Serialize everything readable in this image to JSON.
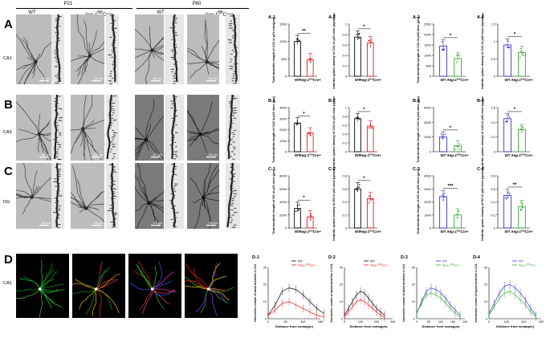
{
  "header": {
    "p21": "P21",
    "p60": "P60",
    "wt": "WT",
    "mutant": "Aeg-1fl/flCre+",
    "mutant_italic": "Aeg-1",
    "mutant_sup": "fl/fl",
    "mutant_suffix": "Cre+"
  },
  "rows": [
    {
      "letter": "A",
      "region": "CA1"
    },
    {
      "letter": "B",
      "region": "CA3"
    },
    {
      "letter": "C",
      "region": "DG"
    },
    {
      "letter": "D",
      "region": "CA1"
    }
  ],
  "scale_labels": [
    "100 μm",
    "100 μm",
    "100 μm",
    "100 μm"
  ],
  "chart_data": [
    {
      "type": "bar",
      "panel": "A-1",
      "ylabel": "Total dendritic length of CA1 in p21 mice(μm)",
      "categories": [
        "WT",
        "Aeg-1fl/flCre+"
      ],
      "values": [
        1000,
        480
      ],
      "yticks": [
        0,
        500,
        1000,
        1500
      ],
      "ylim": [
        0,
        1500
      ],
      "sig": "**",
      "colors": [
        "#000000",
        "#e41a1c"
      ]
    },
    {
      "type": "bar",
      "panel": "A-2",
      "ylabel": "Dendritic spines density of CA1 in p21 mice (spines/μm)",
      "categories": [
        "WT",
        "Aeg-1fl/flCre+"
      ],
      "values": [
        0.75,
        0.64
      ],
      "yticks": [
        0.0,
        0.2,
        0.4,
        0.6,
        0.8,
        1.0
      ],
      "ylim": [
        0,
        1.0
      ],
      "sig": "*",
      "colors": [
        "#000000",
        "#e41a1c"
      ]
    },
    {
      "type": "bar",
      "panel": "A-3",
      "ylabel": "Total dendritic length of CA1 in p60 mice (μm)",
      "categories": [
        "WT",
        "Aeg-1fl/flCre+"
      ],
      "values": [
        1450,
        850
      ],
      "yticks": [
        0,
        500,
        1000,
        1500,
        2000,
        2500
      ],
      "ylim": [
        0,
        2500
      ],
      "sig": "*",
      "colors": [
        "#3333cc",
        "#33aa33"
      ]
    },
    {
      "type": "bar",
      "panel": "A-4",
      "ylabel": "Dendritic spines density of CA1 in p60 mice (spines/μm)",
      "categories": [
        "WT",
        "Aeg-1fl/flCre+"
      ],
      "values": [
        0.9,
        0.68
      ],
      "yticks": [
        0.0,
        0.5,
        1.0,
        1.5
      ],
      "ylim": [
        0,
        1.5
      ],
      "sig": "*",
      "colors": [
        "#3333cc",
        "#33aa33"
      ]
    },
    {
      "type": "bar",
      "panel": "B-1",
      "ylabel": "Total dendritic length of CA3 in p21 mice (μm)",
      "categories": [
        "WT",
        "Aeg-1fl/flCre+"
      ],
      "values": [
        2600,
        1700
      ],
      "yticks": [
        0,
        1000,
        2000,
        3000,
        4000
      ],
      "ylim": [
        0,
        4000
      ],
      "sig": "*",
      "colors": [
        "#000000",
        "#e41a1c"
      ]
    },
    {
      "type": "bar",
      "panel": "B-2",
      "ylabel": "Dendritic spines density of CA3 in p21 mice (spines/μm)",
      "categories": [
        "WT",
        "Aeg-1fl/flCre+"
      ],
      "values": [
        0.75,
        0.58
      ],
      "yticks": [
        0.0,
        0.2,
        0.4,
        0.6,
        0.8,
        1.0
      ],
      "ylim": [
        0,
        1.0
      ],
      "sig": "*",
      "colors": [
        "#000000",
        "#e41a1c"
      ]
    },
    {
      "type": "bar",
      "panel": "B-3",
      "ylabel": "Total dendritic length of CA3 in p60 mice (μm)",
      "categories": [
        "WT",
        "Aeg-1fl/flCre+"
      ],
      "values": [
        2000,
        800
      ],
      "yticks": [
        0,
        2000,
        4000,
        6000
      ],
      "ylim": [
        0,
        6000
      ],
      "sig": "*",
      "colors": [
        "#3333cc",
        "#33aa33"
      ]
    },
    {
      "type": "bar",
      "panel": "B-4",
      "ylabel": "Dendritic spines density of CA3 in p60 mice (spines/μm)",
      "categories": [
        "WT",
        "Aeg-1fl/flCre+"
      ],
      "values": [
        0.45,
        0.3
      ],
      "yticks": [
        0.0,
        0.2,
        0.4,
        0.6
      ],
      "ylim": [
        0,
        0.6
      ],
      "sig": "*",
      "colors": [
        "#3333cc",
        "#33aa33"
      ]
    },
    {
      "type": "bar",
      "panel": "C-1",
      "ylabel": "Total dendritic length of DG in p21 mice (μm)",
      "categories": [
        "WT",
        "Aeg-1fl/flCre+"
      ],
      "values": [
        3000,
        1700
      ],
      "yticks": [
        0,
        2000,
        4000,
        6000,
        8000
      ],
      "ylim": [
        0,
        8000
      ],
      "sig": "*",
      "colors": [
        "#000000",
        "#e41a1c"
      ]
    },
    {
      "type": "bar",
      "panel": "C-2",
      "ylabel": "Dendritic spines density of DG in p21 mice (spines/μm)",
      "categories": [
        "WT",
        "Aeg-1fl/flCre+"
      ],
      "values": [
        0.6,
        0.45
      ],
      "yticks": [
        0.0,
        0.2,
        0.4,
        0.6,
        0.8
      ],
      "ylim": [
        0,
        0.8
      ],
      "sig": "*",
      "colors": [
        "#000000",
        "#e41a1c"
      ]
    },
    {
      "type": "bar",
      "panel": "C-3",
      "ylabel": "Total dendritic length of DG in p60 mice (μm)",
      "categories": [
        "WT",
        "Aeg-1fl/flCre+"
      ],
      "values": [
        2400,
        1000
      ],
      "yticks": [
        0,
        1000,
        2000,
        3000,
        4000
      ],
      "ylim": [
        0,
        4000
      ],
      "sig": "***",
      "colors": [
        "#3333cc",
        "#33aa33"
      ]
    },
    {
      "type": "bar",
      "panel": "C-4",
      "ylabel": "Dendritic spines density of DG in p60 mice (spines/μm)",
      "categories": [
        "WT",
        "Aeg-1fl/flCre+"
      ],
      "values": [
        0.5,
        0.33
      ],
      "yticks": [
        0.0,
        0.2,
        0.4,
        0.6,
        0.8
      ],
      "ylim": [
        0,
        0.8
      ],
      "sig": "**",
      "colors": [
        "#3333cc",
        "#33aa33"
      ]
    },
    {
      "type": "line",
      "panel": "D-1",
      "ylabel": "Intersection number of basal dendrites in CA1",
      "xlabel": "Distance from soma(μm)",
      "x": [
        0,
        20,
        40,
        60,
        80,
        100,
        120,
        140,
        160
      ],
      "series": [
        {
          "name": "WT",
          "color": "#000000",
          "values": [
            2,
            8,
            16,
            18,
            17,
            14,
            10,
            6,
            3
          ]
        },
        {
          "name": "Aeg-1fl/flCre+",
          "color": "#e41a1c",
          "values": [
            2,
            5,
            9,
            10,
            8,
            6,
            4,
            2,
            1
          ]
        }
      ],
      "xticks": [
        0,
        50,
        100,
        150
      ],
      "yticks": [
        0,
        10,
        20,
        30
      ],
      "ylim": [
        0,
        30
      ]
    },
    {
      "type": "line",
      "panel": "D-2",
      "ylabel": "Intersection number of apical dendrites in CA1",
      "xlabel": "Distance from soma(μm)",
      "x": [
        0,
        25,
        50,
        75,
        100,
        125,
        150,
        175,
        200,
        225,
        250
      ],
      "series": [
        {
          "name": "WT",
          "color": "#000000",
          "values": [
            2,
            6,
            10,
            14,
            16,
            15,
            12,
            9,
            6,
            4,
            2
          ]
        },
        {
          "name": "Aeg-1fl/flCre+",
          "color": "#e41a1c",
          "values": [
            1,
            4,
            7,
            10,
            11,
            10,
            8,
            6,
            4,
            2,
            1
          ]
        }
      ],
      "xticks": [
        0,
        100,
        200,
        300
      ],
      "yticks": [
        0,
        10,
        20,
        30
      ],
      "ylim": [
        0,
        30
      ]
    },
    {
      "type": "line",
      "panel": "D-3",
      "ylabel": "Intersection number of basal dendrites in CA1",
      "xlabel": "Distance from soma(μm)",
      "x": [
        0,
        20,
        40,
        60,
        80,
        100,
        120,
        140,
        160,
        180
      ],
      "series": [
        {
          "name": "WT",
          "color": "#3333cc",
          "values": [
            3,
            10,
            16,
            18,
            17,
            15,
            12,
            8,
            5,
            2
          ]
        },
        {
          "name": "Aeg-1fl/flCre+",
          "color": "#33aa33",
          "values": [
            3,
            9,
            14,
            15,
            14,
            12,
            9,
            6,
            3,
            1
          ]
        }
      ],
      "xticks": [
        0,
        50,
        100,
        150,
        200
      ],
      "yticks": [
        0,
        10,
        20,
        30
      ],
      "ylim": [
        0,
        30
      ]
    },
    {
      "type": "line",
      "panel": "D-4",
      "ylabel": "Intersection number of apical dendrites in CA1",
      "xlabel": "Distance from soma(μm)",
      "x": [
        0,
        30,
        60,
        90,
        120,
        150,
        180,
        210,
        240,
        270
      ],
      "series": [
        {
          "name": "WT",
          "color": "#3333cc",
          "values": [
            3,
            9,
            15,
            19,
            20,
            18,
            15,
            11,
            6,
            2
          ]
        },
        {
          "name": "Aeg-1fl/flCre+",
          "color": "#33aa33",
          "values": [
            2,
            7,
            12,
            15,
            16,
            14,
            11,
            8,
            4,
            1
          ]
        }
      ],
      "xticks": [
        0,
        100,
        200,
        300
      ],
      "yticks": [
        0,
        10,
        20,
        30
      ],
      "ylim": [
        0,
        30
      ]
    }
  ]
}
